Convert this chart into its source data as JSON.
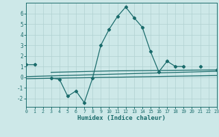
{
  "x": [
    0,
    1,
    2,
    3,
    4,
    5,
    6,
    7,
    8,
    9,
    10,
    11,
    12,
    13,
    14,
    15,
    16,
    17,
    18,
    19,
    20,
    21,
    22,
    23
  ],
  "line1": [
    1.2,
    1.2,
    null,
    -0.1,
    -0.2,
    -1.8,
    -1.3,
    -2.4,
    -0.1,
    3.0,
    4.5,
    5.7,
    6.6,
    5.6,
    4.7,
    2.4,
    0.5,
    1.5,
    1.0,
    1.0,
    null,
    1.0,
    null,
    0.7
  ],
  "line2_x": [
    0,
    23
  ],
  "line2_y": [
    0.05,
    0.55
  ],
  "line3_x": [
    0,
    23
  ],
  "line3_y": [
    -0.15,
    0.15
  ],
  "line4_x": [
    3,
    10,
    15,
    23
  ],
  "line4_y": [
    0.45,
    0.58,
    0.62,
    0.68
  ],
  "bg_color": "#cde8e8",
  "grid_color": "#b0d0d0",
  "line_color": "#1a6b6b",
  "ylim": [
    -2.8,
    7.0
  ],
  "xlim": [
    0,
    23
  ],
  "xlabel": "Humidex (Indice chaleur)",
  "xticks": [
    0,
    1,
    2,
    3,
    4,
    5,
    6,
    7,
    8,
    9,
    10,
    11,
    12,
    13,
    14,
    15,
    16,
    17,
    18,
    19,
    20,
    21,
    22,
    23
  ],
  "yticks": [
    -2,
    -1,
    0,
    1,
    2,
    3,
    4,
    5,
    6
  ]
}
